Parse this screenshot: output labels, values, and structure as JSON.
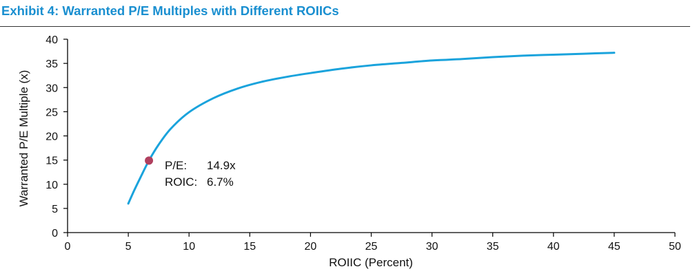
{
  "chart_data": {
    "type": "line",
    "title": "Exhibit 4: Warranted P/E Multiples with Different ROIICs",
    "title_color": "#1a8fd0",
    "line_color": "#1aa3dc",
    "marker_color": "#b0405f",
    "xlabel": "ROIIC (Percent)",
    "ylabel": "Warranted P/E Multiple (x)",
    "xlim": [
      0,
      50
    ],
    "ylim": [
      0,
      40
    ],
    "xticks": [
      "0",
      "5",
      "10",
      "15",
      "20",
      "25",
      "30",
      "35",
      "40",
      "45",
      "50"
    ],
    "yticks": [
      "0",
      "5",
      "10",
      "15",
      "20",
      "25",
      "30",
      "35",
      "40"
    ],
    "grid": false,
    "legend": "none",
    "series": [
      {
        "x": [
          5,
          5.5,
          6,
          6.7,
          7.5,
          8.5,
          10,
          12,
          14,
          16,
          18,
          20,
          22.5,
          25,
          27.5,
          30,
          32.5,
          35,
          37.5,
          40,
          42.5,
          45
        ],
        "y": [
          6.0,
          8.8,
          11.4,
          14.9,
          18.2,
          21.5,
          24.9,
          27.8,
          29.8,
          31.2,
          32.2,
          33.0,
          33.9,
          34.6,
          35.1,
          35.6,
          35.9,
          36.3,
          36.6,
          36.8,
          37.0,
          37.2
        ]
      }
    ],
    "highlight_point": {
      "x": 6.7,
      "y": 14.9,
      "pe_label": "P/E:",
      "pe_value": "14.9x",
      "roic_label": "ROIC:",
      "roic_value": "6.7%"
    }
  }
}
